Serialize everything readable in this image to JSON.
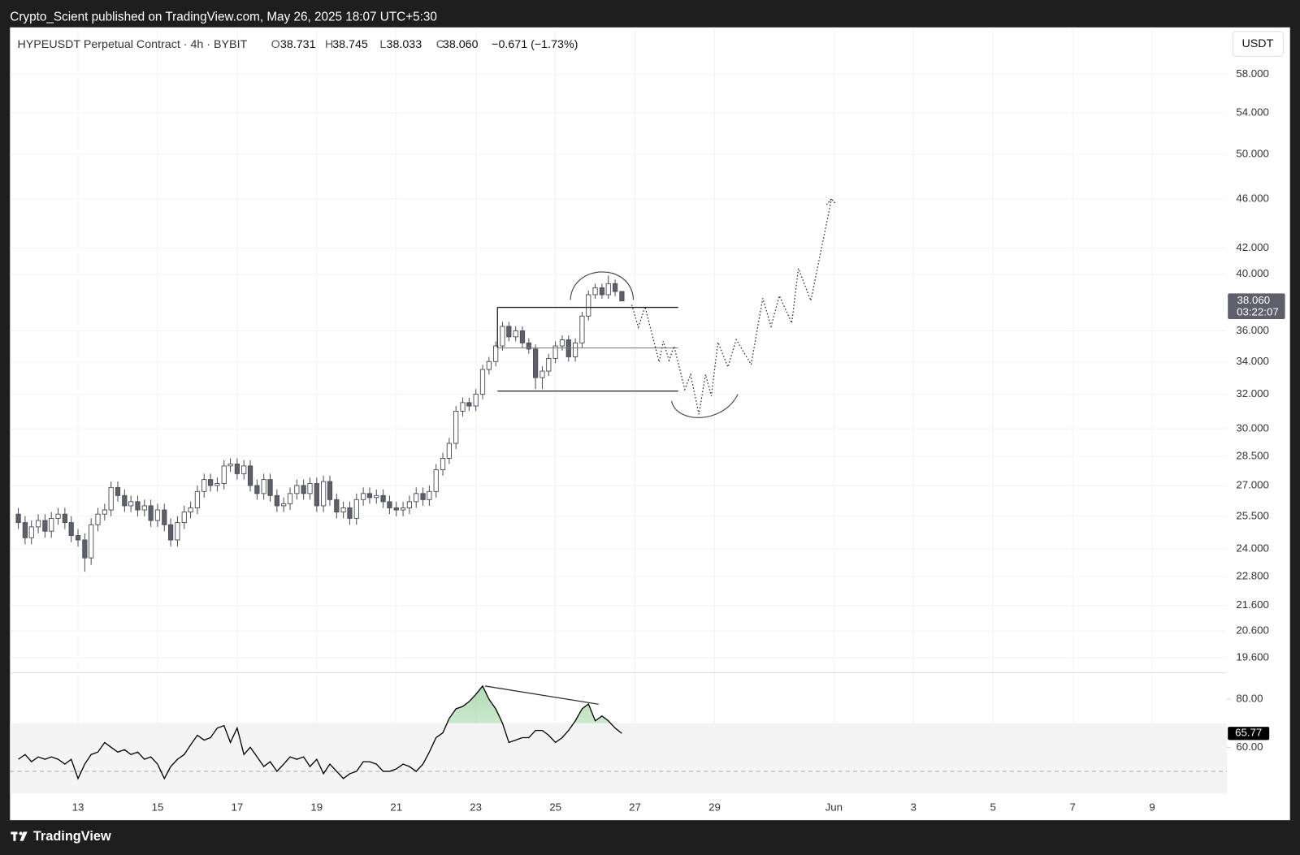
{
  "page": {
    "header": "Crypto_Scient published on TradingView.com, May 26, 2025 18:07 UTC+5:30",
    "legend": {
      "symbol": "HYPEUSDT Perpetual Contract · 4h · BYBIT",
      "items": [
        {
          "key": "O",
          "value": "38.731"
        },
        {
          "key": "H",
          "value": "38.745"
        },
        {
          "key": "L",
          "value": "38.033"
        },
        {
          "key": "C",
          "value": "38.060"
        }
      ],
      "change": "−0.671 (−1.73%)"
    },
    "currency": "USDT",
    "footer": "TradingView"
  },
  "chart_data": {
    "type": "candlestick",
    "log_scale": true,
    "grid": true,
    "up_color": "#ffffff",
    "down_color": "#5d606b",
    "border_color": "#4a4d55",
    "x": [
      11.5,
      11.67,
      11.83,
      12,
      12.17,
      12.33,
      12.5,
      12.67,
      12.83,
      13,
      13.17,
      13.33,
      13.5,
      13.67,
      13.83,
      14,
      14.17,
      14.33,
      14.5,
      14.67,
      14.83,
      15,
      15.17,
      15.33,
      15.5,
      15.67,
      15.83,
      16,
      16.17,
      16.33,
      16.5,
      16.67,
      16.83,
      17,
      17.17,
      17.33,
      17.5,
      17.67,
      17.83,
      18,
      18.17,
      18.33,
      18.5,
      18.67,
      18.83,
      19,
      19.17,
      19.33,
      19.5,
      19.67,
      19.83,
      20,
      20.17,
      20.33,
      20.5,
      20.67,
      20.83,
      21,
      21.17,
      21.33,
      21.5,
      21.67,
      21.83,
      22,
      22.17,
      22.33,
      22.5,
      22.67,
      22.83,
      23,
      23.17,
      23.33,
      23.5,
      23.67,
      23.83,
      24,
      24.17,
      24.33,
      24.5,
      24.67,
      24.83,
      25,
      25.17,
      25.33,
      25.5,
      25.67,
      25.83,
      26,
      26.17,
      26.33,
      26.5,
      26.67
    ],
    "open": [
      25.6,
      25.2,
      24.5,
      25.0,
      25.3,
      24.8,
      25.4,
      25.6,
      25.2,
      24.6,
      24.4,
      23.6,
      25.1,
      25.6,
      25.8,
      26.9,
      26.5,
      26.0,
      26.2,
      25.8,
      26.0,
      25.3,
      25.8,
      25.1,
      24.4,
      25.2,
      25.7,
      25.9,
      26.7,
      27.3,
      27.0,
      27.1,
      28.0,
      28.1,
      27.6,
      28.0,
      27.0,
      26.6,
      27.3,
      26.5,
      26.0,
      26.1,
      26.6,
      27.0,
      26.6,
      27.1,
      26.0,
      27.2,
      26.3,
      25.7,
      25.9,
      25.4,
      26.3,
      26.6,
      26.4,
      26.5,
      26.2,
      25.9,
      25.8,
      25.9,
      26.2,
      26.6,
      26.3,
      26.7,
      27.8,
      28.4,
      29.2,
      31.0,
      31.5,
      31.3,
      32.0,
      33.5,
      34.0,
      35.0,
      36.3,
      35.6,
      36.0,
      35.2,
      34.8,
      33.0,
      33.4,
      34.2,
      35.0,
      35.4,
      34.3,
      35.2,
      37.0,
      38.5,
      39.0,
      38.5,
      39.3,
      38.731
    ],
    "high": [
      25.9,
      25.5,
      25.3,
      25.6,
      25.6,
      25.7,
      25.9,
      25.9,
      25.5,
      24.9,
      24.7,
      25.4,
      25.9,
      26.1,
      27.2,
      27.2,
      26.8,
      26.5,
      26.5,
      26.3,
      26.3,
      26.1,
      26.1,
      25.4,
      25.5,
      26.0,
      26.2,
      27.0,
      27.6,
      27.6,
      27.4,
      28.3,
      28.4,
      28.4,
      28.3,
      28.3,
      27.3,
      27.6,
      27.6,
      26.8,
      26.4,
      26.9,
      27.3,
      27.3,
      27.4,
      27.4,
      27.5,
      27.5,
      26.6,
      26.2,
      26.2,
      26.6,
      26.9,
      26.9,
      26.8,
      26.8,
      26.5,
      26.2,
      26.2,
      26.5,
      26.9,
      26.9,
      27.0,
      28.1,
      28.7,
      29.5,
      31.3,
      31.8,
      31.8,
      32.3,
      33.8,
      34.3,
      35.3,
      36.6,
      36.6,
      36.3,
      36.3,
      35.5,
      35.1,
      33.7,
      34.5,
      35.3,
      35.7,
      35.7,
      35.5,
      37.3,
      38.8,
      39.3,
      39.3,
      39.9,
      39.6,
      38.745
    ],
    "low": [
      24.9,
      24.2,
      24.2,
      24.7,
      24.5,
      24.5,
      25.1,
      24.9,
      24.3,
      24.1,
      23.0,
      23.3,
      24.8,
      25.3,
      25.5,
      26.2,
      25.7,
      25.7,
      25.5,
      25.5,
      25.0,
      25.0,
      24.8,
      24.1,
      24.1,
      24.9,
      25.4,
      25.6,
      26.4,
      26.7,
      26.7,
      26.8,
      27.7,
      27.3,
      27.3,
      26.7,
      26.3,
      26.3,
      26.2,
      25.7,
      25.7,
      25.8,
      26.3,
      26.3,
      26.3,
      25.7,
      25.7,
      26.0,
      25.4,
      25.4,
      25.1,
      25.1,
      26.0,
      26.1,
      26.1,
      25.9,
      25.6,
      25.5,
      25.5,
      25.6,
      25.9,
      26.0,
      26.0,
      26.4,
      27.5,
      28.1,
      28.9,
      30.7,
      31.0,
      31.0,
      31.7,
      33.2,
      33.7,
      34.7,
      35.3,
      35.3,
      34.9,
      34.5,
      32.3,
      32.3,
      33.1,
      33.9,
      34.7,
      34.0,
      34.0,
      34.9,
      36.7,
      38.2,
      38.2,
      38.2,
      38.4,
      38.033
    ],
    "close": [
      25.2,
      24.5,
      25.0,
      25.3,
      24.8,
      25.4,
      25.6,
      25.2,
      24.6,
      24.4,
      23.6,
      25.1,
      25.6,
      25.8,
      26.9,
      26.5,
      26.0,
      26.2,
      25.8,
      26.0,
      25.3,
      25.8,
      25.1,
      24.4,
      25.2,
      25.7,
      25.9,
      26.7,
      27.3,
      27.0,
      27.1,
      28.0,
      28.1,
      27.6,
      28.0,
      27.0,
      26.6,
      27.3,
      26.5,
      26.0,
      26.1,
      26.6,
      27.0,
      26.6,
      27.1,
      26.0,
      27.2,
      26.3,
      25.7,
      25.9,
      25.4,
      26.3,
      26.6,
      26.4,
      26.5,
      26.2,
      25.9,
      25.8,
      25.9,
      26.2,
      26.6,
      26.3,
      26.7,
      27.8,
      28.4,
      29.2,
      31.0,
      31.5,
      31.3,
      32.0,
      33.5,
      34.0,
      35.0,
      36.3,
      35.6,
      36.0,
      35.2,
      34.8,
      33.0,
      33.4,
      34.2,
      35.0,
      35.4,
      34.3,
      35.2,
      37.0,
      38.5,
      39.0,
      38.5,
      39.3,
      38.731,
      38.06
    ],
    "xlim": [
      11.29,
      41.88
    ],
    "xticks": [
      13,
      15,
      17,
      19,
      21,
      23,
      25,
      27,
      29,
      {
        "value": 32,
        "label": "Jun"
      },
      {
        "value": 34,
        "label": "3"
      },
      {
        "value": 36,
        "label": "5"
      },
      {
        "value": 38,
        "label": "7"
      },
      {
        "value": 40,
        "label": "9"
      }
    ],
    "ylim": [
      19.12,
      63.3
    ],
    "yticks": [
      {
        "value": 58,
        "label": "58.000"
      },
      {
        "value": 54,
        "label": "54.000"
      },
      {
        "value": 50,
        "label": "50.000"
      },
      {
        "value": 46,
        "label": "46.000"
      },
      {
        "value": 42,
        "label": "42.000"
      },
      {
        "value": 40,
        "label": "40.000"
      },
      {
        "value": 36,
        "label": "36.000"
      },
      {
        "value": 34,
        "label": "34.000"
      },
      {
        "value": 32,
        "label": "32.000"
      },
      {
        "value": 30,
        "label": "30.000"
      },
      {
        "value": 28.5,
        "label": "28.500"
      },
      {
        "value": 27,
        "label": "27.000"
      },
      {
        "value": 25.5,
        "label": "25.500"
      },
      {
        "value": 24,
        "label": "24.000"
      },
      {
        "value": 22.8,
        "label": "22.800"
      },
      {
        "value": 21.6,
        "label": "21.600"
      },
      {
        "value": 20.6,
        "label": "20.600"
      },
      {
        "value": 19.6,
        "label": "19.600"
      }
    ],
    "price_marker": {
      "value": 38.06,
      "label": "38.060",
      "countdown": "03:22:07"
    },
    "indicator": {
      "type": "line",
      "color": "#000000",
      "values": [
        55,
        57,
        54,
        56,
        55,
        56,
        55,
        53,
        55,
        47,
        53,
        57,
        58,
        62,
        60,
        58,
        59,
        57,
        58,
        55,
        56,
        53,
        47,
        52,
        55,
        57,
        61,
        65,
        63,
        64,
        68,
        69,
        62,
        68,
        57,
        60,
        56,
        52,
        54,
        50,
        53,
        56,
        55,
        56,
        52,
        55,
        49,
        53,
        50,
        47,
        49,
        50,
        54,
        54,
        53,
        50,
        50,
        51,
        53,
        52,
        50,
        53,
        58,
        64,
        66,
        72,
        76,
        77,
        79,
        82,
        85.5,
        80,
        76,
        70,
        62,
        63,
        64,
        64,
        67,
        67,
        65,
        62,
        64,
        67,
        71,
        76,
        78,
        71,
        73,
        71,
        68,
        65.77
      ],
      "ylim": [
        40.7,
        91
      ],
      "yticks": [
        {
          "value": 80,
          "label": "80.00"
        },
        {
          "value": 60,
          "label": "60.00"
        }
      ],
      "levels": {
        "upper": 70,
        "middle": 50
      },
      "marker": {
        "value": 65.77,
        "label": "65.77"
      }
    }
  }
}
